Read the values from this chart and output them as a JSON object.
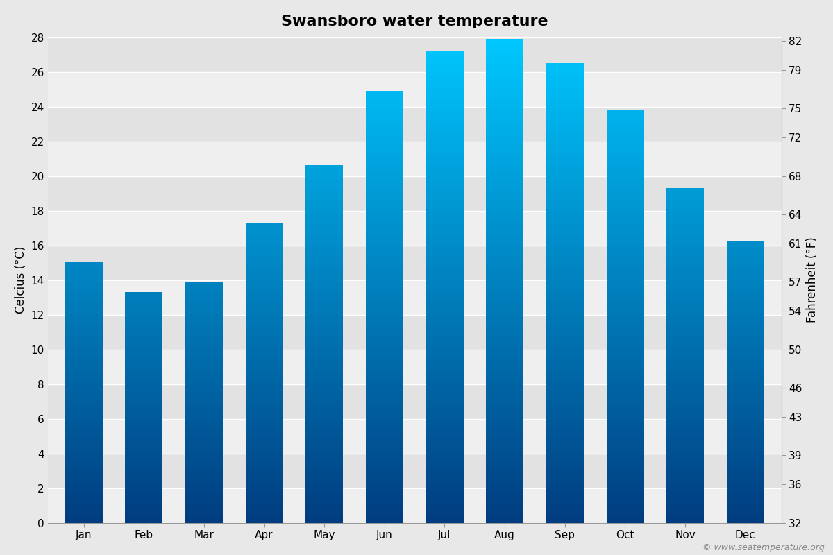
{
  "title": "Swansboro water temperature",
  "months": [
    "Jan",
    "Feb",
    "Mar",
    "Apr",
    "May",
    "Jun",
    "Jul",
    "Aug",
    "Sep",
    "Oct",
    "Nov",
    "Dec"
  ],
  "celsius_values": [
    15.0,
    13.3,
    13.9,
    17.3,
    20.6,
    24.9,
    27.2,
    27.9,
    26.5,
    23.8,
    19.3,
    16.2
  ],
  "ylabel_left": "Celcius (°C)",
  "ylabel_right": "Fahrenheit (°F)",
  "ylim_left": [
    0,
    28
  ],
  "yticks_left": [
    0,
    2,
    4,
    6,
    8,
    10,
    12,
    14,
    16,
    18,
    20,
    22,
    24,
    26,
    28
  ],
  "yticks_right": [
    32,
    36,
    39,
    43,
    46,
    50,
    54,
    57,
    61,
    64,
    68,
    72,
    75,
    79,
    82
  ],
  "background_color": "#e8e8e8",
  "plot_bg_color": "#ffffff",
  "band_color_light": "#efefef",
  "band_color_dark": "#e2e2e2",
  "bar_color_top": "#00c8ff",
  "bar_color_bottom": "#003d80",
  "title_fontsize": 16,
  "axis_label_fontsize": 12,
  "tick_fontsize": 11,
  "watermark": "© www.seatemperature.org"
}
